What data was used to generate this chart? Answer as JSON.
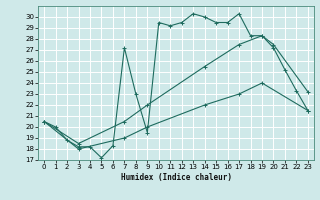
{
  "xlabel": "Humidex (Indice chaleur)",
  "xlim": [
    -0.5,
    23.5
  ],
  "ylim": [
    17,
    31
  ],
  "yticks": [
    17,
    18,
    19,
    20,
    21,
    22,
    23,
    24,
    25,
    26,
    27,
    28,
    29,
    30
  ],
  "xticks": [
    0,
    1,
    2,
    3,
    4,
    5,
    6,
    7,
    8,
    9,
    10,
    11,
    12,
    13,
    14,
    15,
    16,
    17,
    18,
    19,
    20,
    21,
    22,
    23
  ],
  "bg_color": "#cfe9e9",
  "grid_color": "#ffffff",
  "line_color": "#1e6b5e",
  "line1_x": [
    0,
    1,
    2,
    3,
    4,
    5,
    6,
    7,
    8,
    9,
    10,
    11,
    12,
    13,
    14,
    15,
    16,
    17,
    18,
    19,
    20,
    21,
    22,
    23
  ],
  "line1_y": [
    20.5,
    20.0,
    18.8,
    18.2,
    18.2,
    17.2,
    18.3,
    27.2,
    23.0,
    19.5,
    29.5,
    29.2,
    29.5,
    30.3,
    30.0,
    29.5,
    29.5,
    30.3,
    28.3,
    28.3,
    27.2,
    25.2,
    23.3,
    21.5
  ],
  "line2_x": [
    0,
    3,
    7,
    9,
    14,
    17,
    19,
    20,
    23
  ],
  "line2_y": [
    20.5,
    18.5,
    20.5,
    22.0,
    25.5,
    27.5,
    28.3,
    27.5,
    23.2
  ],
  "line3_x": [
    0,
    3,
    7,
    9,
    14,
    17,
    19,
    23
  ],
  "line3_y": [
    20.5,
    18.0,
    19.0,
    20.0,
    22.0,
    23.0,
    24.0,
    21.5
  ]
}
